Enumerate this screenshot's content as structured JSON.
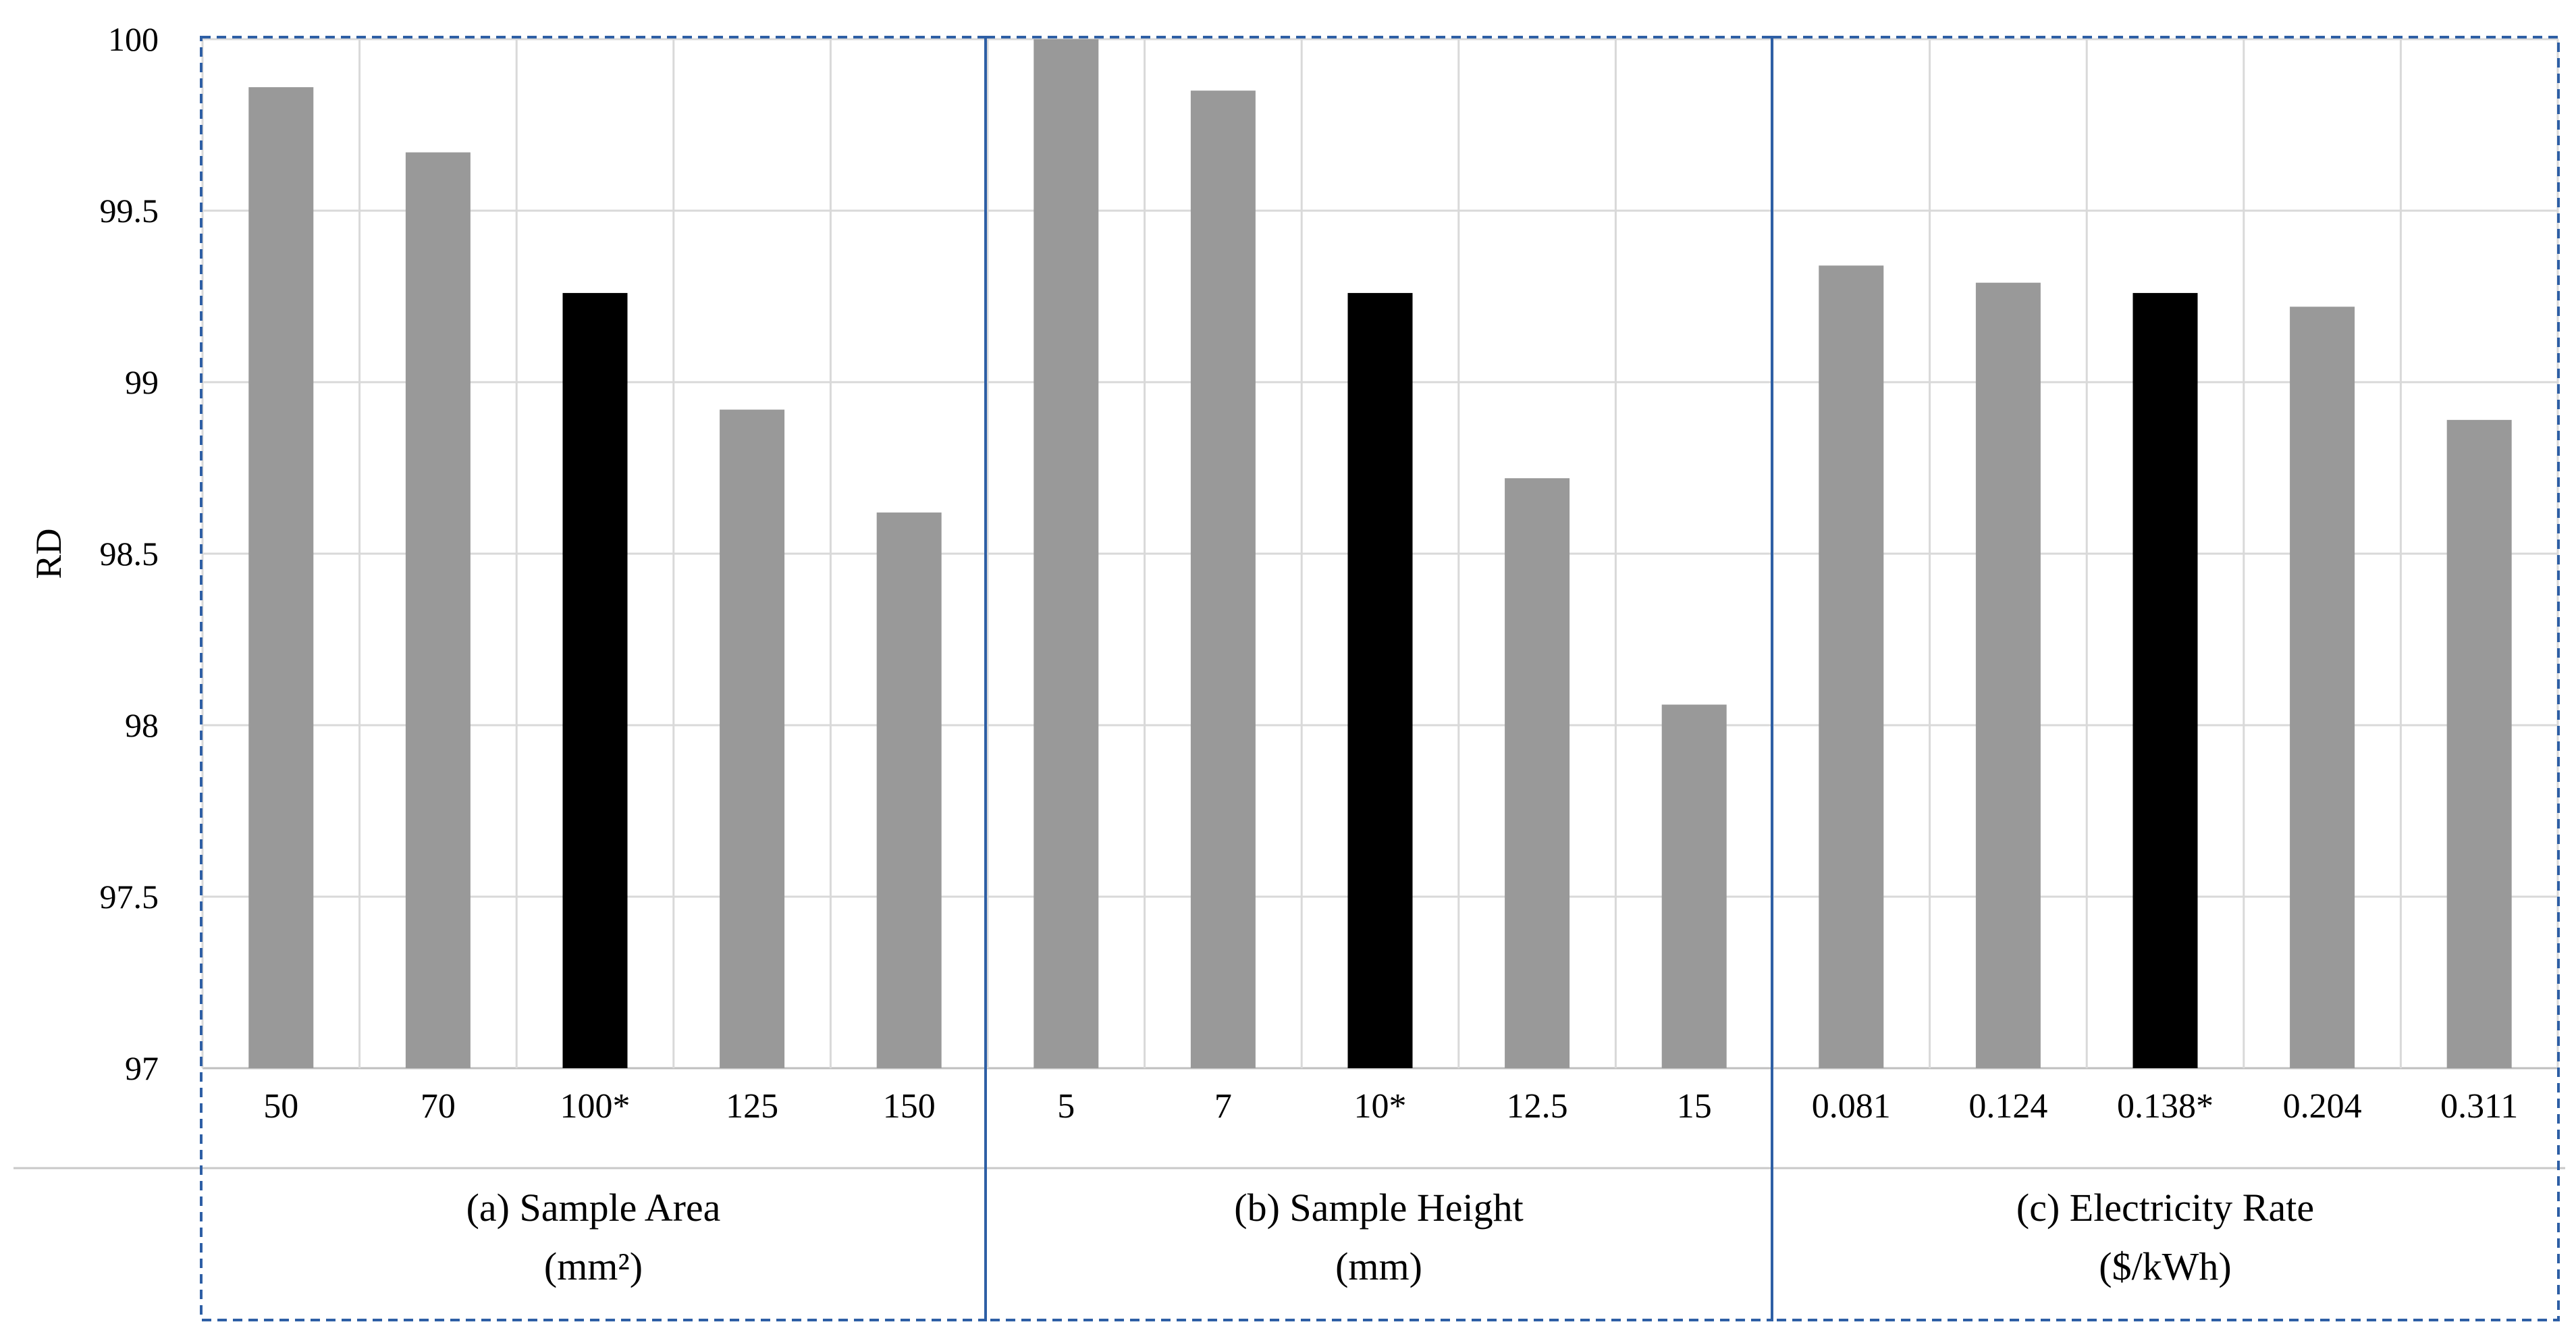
{
  "chart_data": {
    "type": "bar",
    "ylabel": "RD",
    "ylim": [
      97,
      100
    ],
    "yticks": [
      97,
      97.5,
      98,
      98.5,
      99,
      99.5,
      100
    ],
    "ytick_labels": [
      "97",
      "97.5",
      "98",
      "98.5",
      "99",
      "99.5",
      "100"
    ],
    "grid": true,
    "bar_color": "#999999",
    "highlight_color": "#000000",
    "panel_border_color": "#2e5fa5",
    "gridline_color": "#d9d9d9",
    "panels": [
      {
        "label": "(a) Sample Area",
        "unit": "(mm²)",
        "categories": [
          "50",
          "70",
          "100*",
          "125",
          "150"
        ],
        "values": [
          99.86,
          99.67,
          99.26,
          98.92,
          98.62
        ],
        "highlight_index": 2
      },
      {
        "label": "(b) Sample Height",
        "unit": "(mm)",
        "categories": [
          "5",
          "7",
          "10*",
          "12.5",
          "15"
        ],
        "values": [
          100.0,
          99.85,
          99.26,
          98.72,
          98.06
        ],
        "highlight_index": 2
      },
      {
        "label": "(c) Electricity Rate",
        "unit": "($/kWh)",
        "categories": [
          "0.081",
          "0.124",
          "0.138*",
          "0.204",
          "0.311"
        ],
        "values": [
          99.34,
          99.29,
          99.26,
          99.22,
          98.89
        ],
        "highlight_index": 2
      }
    ]
  }
}
